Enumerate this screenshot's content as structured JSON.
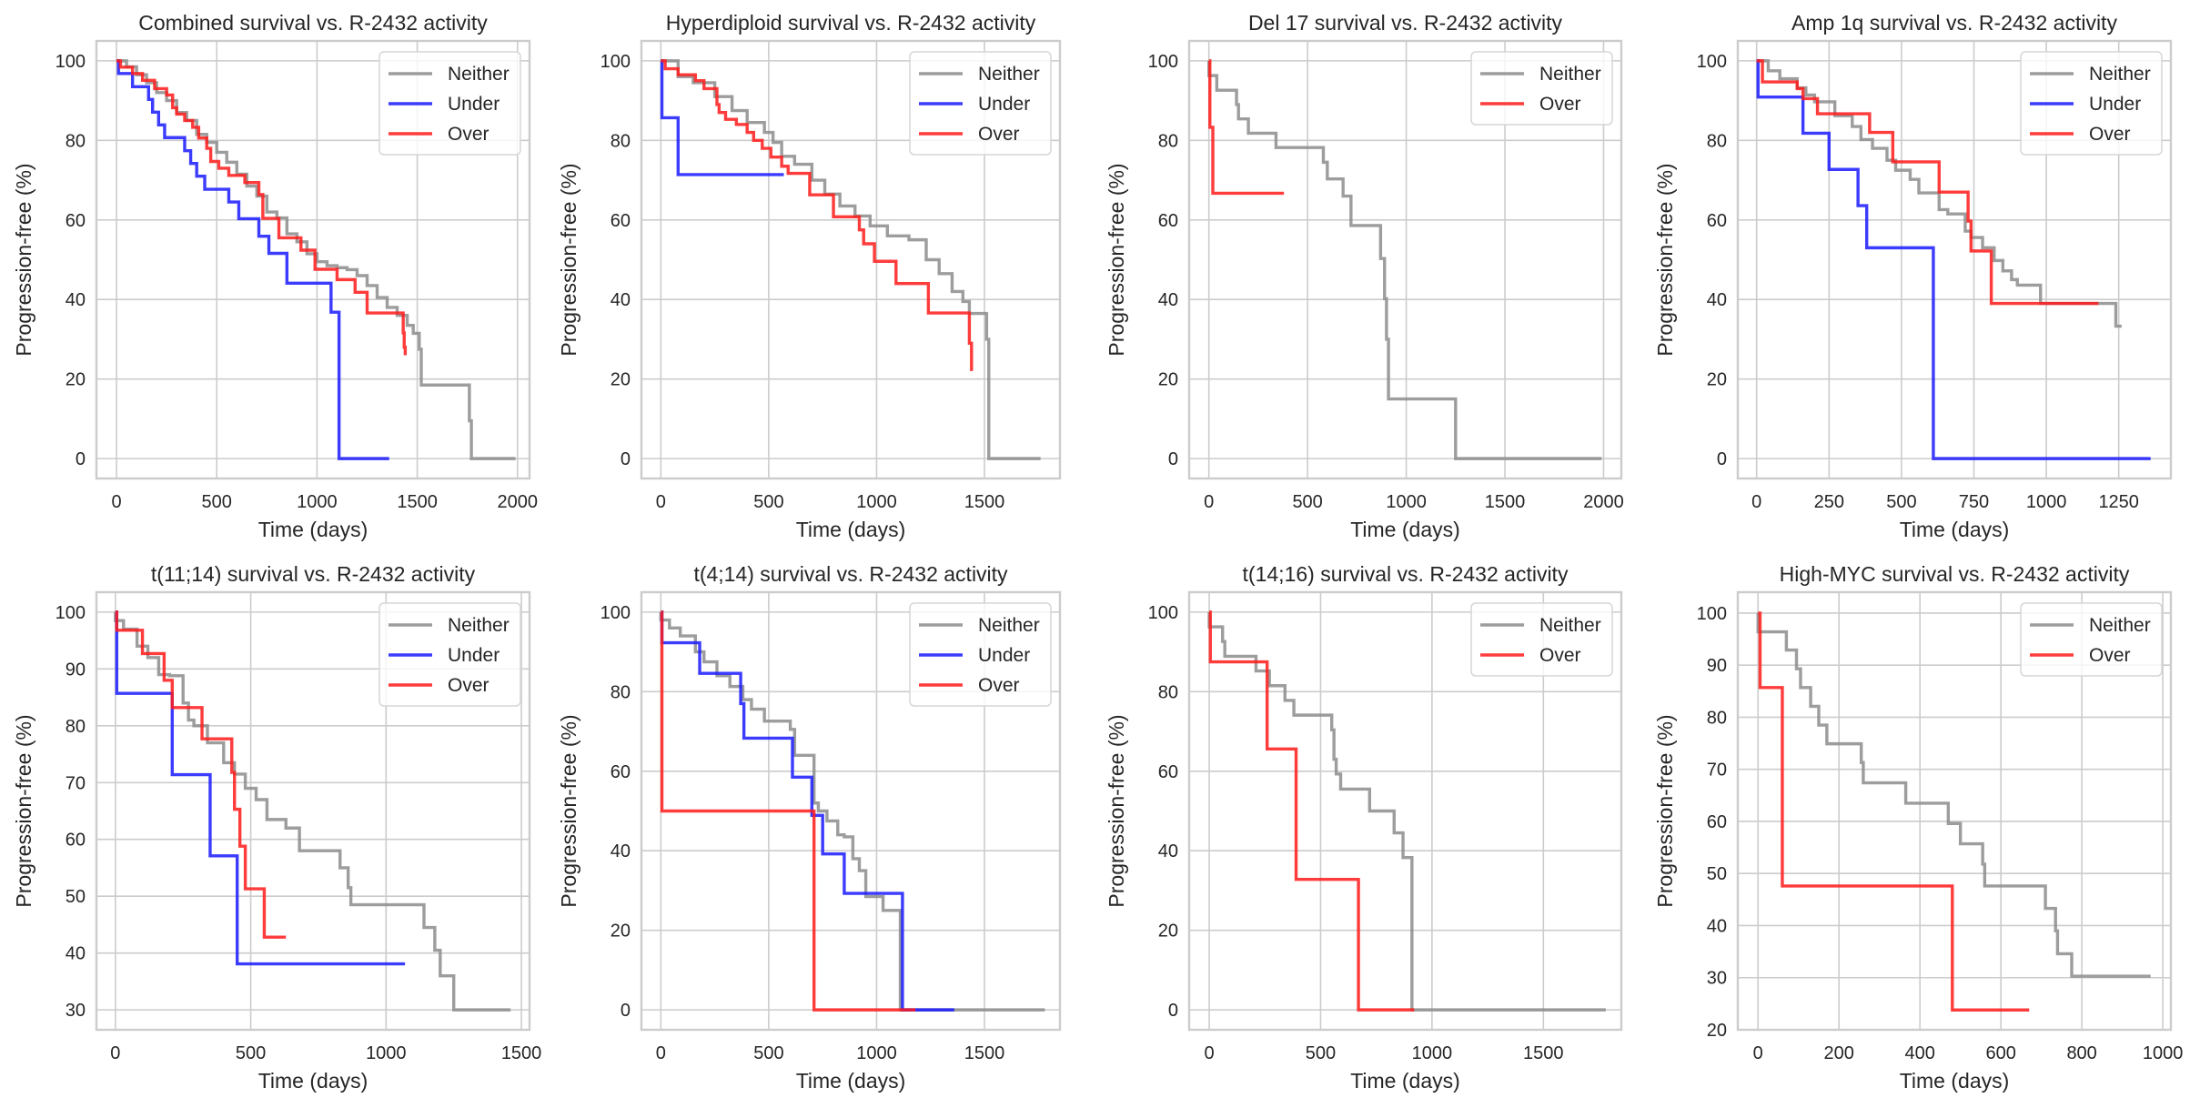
{
  "colors": {
    "Neither": "#8c8c8c",
    "Under": "#1a1aff",
    "Over": "#ff1a1a"
  },
  "chart_data": [
    {
      "type": "line",
      "title": "Combined survival vs. R-2432 activity",
      "xlabel": "Time (days)",
      "ylabel": "Progression-free (%)",
      "xlim": [
        -100,
        2060
      ],
      "ylim": [
        -5,
        105
      ],
      "xticks": [
        0,
        500,
        1000,
        1500,
        2000
      ],
      "yticks": [
        0,
        20,
        40,
        60,
        80,
        100
      ],
      "grid": true,
      "legend": "top-right",
      "series": [
        {
          "name": "Neither",
          "step": true,
          "x": [
            0,
            50,
            100,
            150,
            200,
            250,
            300,
            350,
            400,
            450,
            500,
            550,
            600,
            650,
            700,
            750,
            800,
            850,
            900,
            950,
            1000,
            1050,
            1100,
            1150,
            1200,
            1250,
            1300,
            1350,
            1400,
            1450,
            1480,
            1500,
            1510,
            1520,
            1750,
            1760,
            1770,
            1990
          ],
          "y": [
            100,
            98.5,
            96.5,
            94.5,
            92,
            90,
            87,
            85,
            81.5,
            79.5,
            77,
            74.5,
            71.5,
            68.5,
            66,
            62,
            60.5,
            56.5,
            54.5,
            51.5,
            49.5,
            48.5,
            48,
            47.5,
            46,
            43.5,
            40.5,
            38,
            36,
            33.5,
            31.5,
            31.5,
            27.5,
            18.5,
            18.5,
            9.5,
            0,
            0
          ]
        },
        {
          "name": "Under",
          "step": true,
          "x": [
            0,
            10,
            80,
            160,
            180,
            210,
            240,
            340,
            370,
            400,
            440,
            560,
            610,
            710,
            760,
            850,
            1070,
            1110,
            1360
          ],
          "y": [
            100,
            96.8,
            93.5,
            90.3,
            87.1,
            83.9,
            80.7,
            77.4,
            74.2,
            71,
            67.7,
            64.5,
            60.3,
            55.9,
            51.6,
            44.1,
            36.8,
            0,
            0
          ]
        },
        {
          "name": "Over",
          "step": true,
          "x": [
            0,
            20,
            80,
            130,
            190,
            250,
            280,
            300,
            340,
            380,
            410,
            450,
            470,
            510,
            560,
            640,
            710,
            730,
            810,
            920,
            990,
            1100,
            1190,
            1250,
            1430,
            1435,
            1440
          ],
          "y": [
            100,
            98.4,
            96.8,
            95.1,
            93,
            91.4,
            88.2,
            86.6,
            85,
            83.3,
            80.6,
            78,
            74.7,
            73,
            71.2,
            69.4,
            66.4,
            60.4,
            55.5,
            52.4,
            47.6,
            45,
            41.8,
            36.6,
            31.6,
            28,
            26
          ]
        }
      ]
    },
    {
      "type": "line",
      "title": "Hyperdiploid survival vs. R-2432 activity",
      "xlabel": "Time (days)",
      "ylabel": "Progression-free (%)",
      "xlim": [
        -90,
        1850
      ],
      "ylim": [
        -5,
        105
      ],
      "xticks": [
        0,
        500,
        1000,
        1500
      ],
      "yticks": [
        0,
        20,
        40,
        60,
        80,
        100
      ],
      "grid": true,
      "legend": "top-right",
      "series": [
        {
          "name": "Neither",
          "step": true,
          "x": [
            0,
            80,
            150,
            250,
            330,
            400,
            480,
            520,
            560,
            620,
            700,
            760,
            830,
            900,
            970,
            1050,
            1150,
            1230,
            1290,
            1350,
            1400,
            1430,
            1510,
            1520,
            1760
          ],
          "y": [
            100,
            96,
            94.5,
            91,
            87.5,
            84.5,
            82,
            79.5,
            76,
            74,
            70,
            66.5,
            63.5,
            61,
            58.5,
            56,
            55,
            50,
            46.5,
            42,
            39.5,
            36.5,
            30,
            0,
            0
          ]
        },
        {
          "name": "Under",
          "step": true,
          "x": [
            0,
            5,
            80,
            570
          ],
          "y": [
            100,
            85.7,
            71.4,
            71.4
          ]
        },
        {
          "name": "Over",
          "step": true,
          "x": [
            0,
            20,
            80,
            160,
            200,
            260,
            270,
            300,
            350,
            400,
            430,
            470,
            510,
            560,
            590,
            690,
            800,
            920,
            940,
            990,
            1090,
            1240,
            1430,
            1440
          ],
          "y": [
            100,
            98,
            96.5,
            95,
            93,
            89,
            87,
            85.3,
            84,
            82,
            80,
            78,
            75.8,
            73.5,
            71.7,
            66.3,
            60.8,
            57.5,
            54,
            49.6,
            44,
            36.6,
            29,
            22
          ]
        }
      ]
    },
    {
      "type": "line",
      "title": "Del 17 survival vs. R-2432 activity",
      "xlabel": "Time (days)",
      "ylabel": "Progression-free (%)",
      "xlim": [
        -100,
        2090
      ],
      "ylim": [
        -5,
        105
      ],
      "xticks": [
        0,
        500,
        1000,
        1500,
        2000
      ],
      "yticks": [
        0,
        20,
        40,
        60,
        80,
        100
      ],
      "grid": true,
      "legend": "top-right",
      "series": [
        {
          "name": "Neither",
          "step": true,
          "x": [
            0,
            40,
            140,
            150,
            200,
            340,
            580,
            600,
            680,
            720,
            870,
            890,
            900,
            910,
            1250,
            1990
          ],
          "y": [
            96.3,
            92.6,
            89,
            85.4,
            81.8,
            78.2,
            74.5,
            70.3,
            66,
            58.6,
            50.3,
            40.2,
            30,
            15,
            0,
            0
          ]
        },
        {
          "name": "Over",
          "step": true,
          "x": [
            0,
            5,
            20,
            380
          ],
          "y": [
            100,
            83.3,
            66.7,
            66.7
          ]
        }
      ]
    },
    {
      "type": "line",
      "title": "Amp 1q survival vs. R-2432 activity",
      "xlabel": "Time (days)",
      "ylabel": "Progression-free (%)",
      "xlim": [
        -65,
        1430
      ],
      "ylim": [
        -5,
        105
      ],
      "xticks": [
        0,
        250,
        500,
        750,
        1000,
        1250
      ],
      "yticks": [
        0,
        20,
        40,
        60,
        80,
        100
      ],
      "grid": true,
      "legend": "top-right",
      "series": [
        {
          "name": "Neither",
          "step": true,
          "x": [
            0,
            40,
            80,
            140,
            170,
            200,
            270,
            330,
            360,
            400,
            450,
            480,
            530,
            560,
            630,
            660,
            720,
            740,
            780,
            820,
            850,
            880,
            900,
            980,
            1240,
            1260
          ],
          "y": [
            100,
            97.5,
            95.5,
            93.2,
            91.4,
            89.7,
            86.2,
            83.5,
            80.2,
            78,
            75,
            72.5,
            70.2,
            66.8,
            62.6,
            61.5,
            57.2,
            55.6,
            53,
            49.8,
            47.2,
            45,
            43.6,
            39,
            33.3,
            33.3
          ]
        },
        {
          "name": "Under",
          "step": true,
          "x": [
            0,
            5,
            160,
            250,
            350,
            380,
            610,
            1360
          ],
          "y": [
            100,
            90.9,
            81.8,
            72.7,
            63.6,
            53,
            0,
            0
          ]
        },
        {
          "name": "Over",
          "step": true,
          "x": [
            0,
            20,
            140,
            160,
            210,
            390,
            470,
            630,
            730,
            740,
            810,
            1180
          ],
          "y": [
            100,
            94.7,
            93,
            90.5,
            86.7,
            82,
            74.6,
            67,
            59.7,
            52.2,
            39,
            39
          ]
        }
      ]
    },
    {
      "type": "line",
      "title": "t(11;14) survival vs. R-2432 activity",
      "xlabel": "Time (days)",
      "ylabel": "Progression-free (%)",
      "xlim": [
        -70,
        1530
      ],
      "ylim": [
        26.5,
        103.5
      ],
      "xticks": [
        0,
        500,
        1000,
        1500
      ],
      "yticks": [
        30,
        40,
        50,
        60,
        70,
        80,
        90,
        100
      ],
      "grid": true,
      "legend": "top-right",
      "series": [
        {
          "name": "Neither",
          "step": true,
          "x": [
            0,
            30,
            80,
            120,
            160,
            200,
            250,
            270,
            290,
            340,
            360,
            400,
            440,
            480,
            520,
            560,
            630,
            680,
            720,
            830,
            860,
            870,
            880,
            1140,
            1180,
            1200,
            1250,
            1460
          ],
          "y": [
            98.5,
            97,
            94,
            92,
            89,
            88.8,
            84,
            81,
            80,
            77,
            77,
            73.5,
            71.5,
            69,
            67,
            63.5,
            62,
            58,
            58,
            55,
            51.5,
            48.5,
            48.5,
            44.5,
            40.5,
            36,
            30,
            30
          ]
        },
        {
          "name": "Under",
          "step": true,
          "x": [
            0,
            5,
            210,
            350,
            450,
            1070
          ],
          "y": [
            100,
            85.7,
            71.4,
            57.1,
            38.1,
            38.1
          ]
        },
        {
          "name": "Over",
          "step": true,
          "x": [
            0,
            5,
            100,
            180,
            210,
            320,
            430,
            440,
            460,
            480,
            550,
            630
          ],
          "y": [
            100,
            96.8,
            92.7,
            88,
            83.2,
            77.7,
            71.8,
            65.3,
            58.8,
            51.3,
            42.8,
            42.8
          ]
        }
      ]
    },
    {
      "type": "line",
      "title": "t(4;14) survival vs. R-2432 activity",
      "xlabel": "Time (days)",
      "ylabel": "Progression-free (%)",
      "xlim": [
        -90,
        1850
      ],
      "ylim": [
        -5,
        105
      ],
      "xticks": [
        0,
        500,
        1000,
        1500
      ],
      "yticks": [
        0,
        20,
        40,
        60,
        80,
        100
      ],
      "grid": true,
      "legend": "top-right",
      "series": [
        {
          "name": "Neither",
          "step": true,
          "x": [
            0,
            40,
            90,
            160,
            200,
            260,
            320,
            380,
            420,
            480,
            600,
            620,
            710,
            730,
            770,
            820,
            850,
            890,
            920,
            950,
            1030,
            1100,
            1110,
            1780
          ],
          "y": [
            98,
            96,
            94,
            90,
            87.5,
            84,
            81.3,
            78,
            75.6,
            72.6,
            70.5,
            64,
            52,
            50,
            47.5,
            44,
            43.5,
            38,
            35,
            28.5,
            25,
            25,
            0,
            0
          ]
        },
        {
          "name": "Under",
          "step": true,
          "x": [
            0,
            5,
            180,
            370,
            385,
            610,
            700,
            750,
            850,
            1120,
            1360
          ],
          "y": [
            100,
            92.3,
            84.6,
            77,
            68.3,
            58.5,
            48.9,
            39.2,
            29.3,
            0,
            0
          ]
        },
        {
          "name": "Over",
          "step": true,
          "x": [
            0,
            5,
            710,
            1180
          ],
          "y": [
            100,
            50,
            0,
            0
          ]
        }
      ]
    },
    {
      "type": "line",
      "title": "t(14;16) survival vs. R-2432 activity",
      "xlabel": "Time (days)",
      "ylabel": "Progression-free (%)",
      "xlim": [
        -90,
        1850
      ],
      "ylim": [
        -5,
        105
      ],
      "xticks": [
        0,
        500,
        1000,
        1500
      ],
      "yticks": [
        0,
        20,
        40,
        60,
        80,
        100
      ],
      "grid": true,
      "legend": "top-right",
      "series": [
        {
          "name": "Neither",
          "step": true,
          "x": [
            0,
            60,
            70,
            210,
            270,
            340,
            380,
            550,
            560,
            570,
            590,
            720,
            830,
            870,
            910,
            1780
          ],
          "y": [
            96.3,
            92.6,
            88.9,
            85.2,
            81.5,
            77.8,
            74.1,
            70.4,
            63,
            59.3,
            55.5,
            50,
            44.5,
            38.3,
            0,
            0
          ]
        },
        {
          "name": "Over",
          "step": true,
          "x": [
            0,
            5,
            260,
            390,
            670,
            920
          ],
          "y": [
            100,
            87.5,
            65.6,
            32.8,
            0,
            0
          ]
        }
      ]
    },
    {
      "type": "line",
      "title": "High-MYC survival vs. R-2432 activity",
      "xlabel": "Time (days)",
      "ylabel": "Progression-free (%)",
      "xlim": [
        -50,
        1020
      ],
      "ylim": [
        20,
        104
      ],
      "xticks": [
        0,
        200,
        400,
        600,
        800,
        1000
      ],
      "yticks": [
        20,
        30,
        40,
        50,
        60,
        70,
        80,
        90,
        100
      ],
      "grid": true,
      "legend": "top-right",
      "series": [
        {
          "name": "Neither",
          "step": true,
          "x": [
            0,
            70,
            95,
            105,
            130,
            150,
            170,
            255,
            260,
            365,
            470,
            500,
            555,
            560,
            710,
            735,
            740,
            775,
            970
          ],
          "y": [
            96.4,
            92.9,
            89.3,
            85.7,
            82.1,
            78.5,
            74.9,
            71.3,
            67.4,
            63.5,
            59.6,
            55.7,
            51.8,
            47.6,
            43.3,
            39,
            34.6,
            30.3,
            30.3
          ]
        },
        {
          "name": "Over",
          "step": true,
          "x": [
            0,
            5,
            60,
            480,
            670
          ],
          "y": [
            100,
            85.7,
            47.6,
            23.8,
            23.8
          ]
        }
      ]
    }
  ]
}
